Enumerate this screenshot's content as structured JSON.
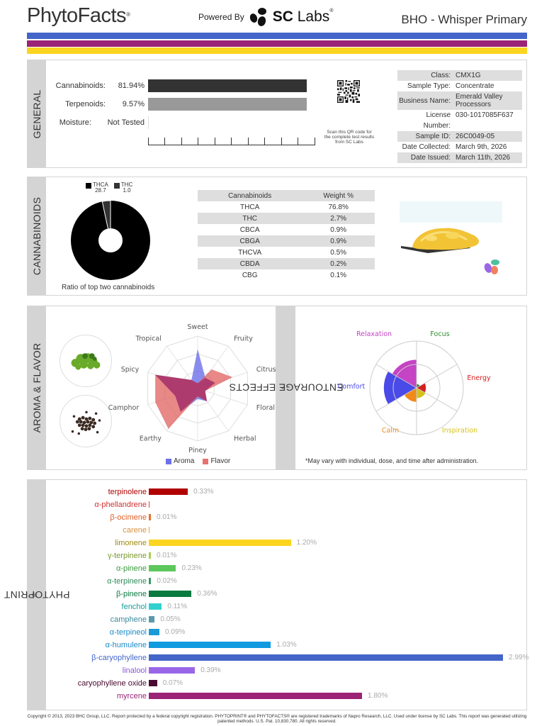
{
  "header": {
    "brand": "PhytoFacts",
    "brand_mark": "®",
    "powered_by": "Powered By",
    "lab_name_bold": "SC",
    "lab_name": "Labs",
    "lab_mark": "®",
    "product_title": "BHO - Whisper Primary"
  },
  "stripes": [
    "#4466c9",
    "#9b2476",
    "#fcd520"
  ],
  "general": {
    "section_label": "GENERAL",
    "rows": [
      {
        "label": "Cannabinoids:",
        "value": "81.94%",
        "bar_color": "#333333"
      },
      {
        "label": "Terpenoids:",
        "value": "9.57%",
        "bar_color": "#999999"
      },
      {
        "label": "Moisture:",
        "value": "Not Tested",
        "bar_color": "#dddddd"
      }
    ],
    "qr_caption": "Scan this QR code for the complete test results from SC Labs",
    "info": [
      {
        "key": "Class:",
        "value": "CMX1G"
      },
      {
        "key": "Sample Type:",
        "value": "Concentrate"
      },
      {
        "key": "Business Name:",
        "value": "Emerald Valley Processors"
      },
      {
        "key": "License Number:",
        "value": "030-1017085F637"
      },
      {
        "key": "Sample ID:",
        "value": "26C0049-05"
      },
      {
        "key": "Date Collected:",
        "value": "March 9th, 2026"
      },
      {
        "key": "Date Issued:",
        "value": "March 11th, 2026"
      }
    ]
  },
  "cannabinoids": {
    "section_label": "CANNABINOIDS",
    "donut_legend": [
      {
        "label": "THCA",
        "value": "28.7",
        "color": "#000000"
      },
      {
        "label": "THC",
        "value": "1.0",
        "color": "#333333"
      }
    ],
    "donut_caption": "Ratio of top two cannabinoids",
    "table": {
      "headers": [
        "Cannabinoids",
        "Weight %"
      ],
      "rows": [
        [
          "THCA",
          "76.8%"
        ],
        [
          "THC",
          "2.7%"
        ],
        [
          "CBCA",
          "0.9%"
        ],
        [
          "CBGA",
          "0.9%"
        ],
        [
          "THCVA",
          "0.5%"
        ],
        [
          "CBDA",
          "0.2%"
        ],
        [
          "CBG",
          "0.1%"
        ]
      ]
    }
  },
  "aroma": {
    "section_label": "AROMA & FLAVOR",
    "axes": [
      "Sweet",
      "Fruity",
      "Citrusy",
      "Floral",
      "Herbal",
      "Piney",
      "Earthy",
      "Camphor",
      "Spicy",
      "Tropical"
    ],
    "legend": [
      {
        "label": "Aroma",
        "color": "#6d6fe8"
      },
      {
        "label": "Flavor",
        "color": "#e8706f"
      }
    ]
  },
  "effects": {
    "section_label": "ENTOURAGE EFFECTS",
    "section_mark": "*",
    "labels": [
      {
        "label": "Relaxation",
        "color": "#c543c5"
      },
      {
        "label": "Focus",
        "color": "#2e8b2e"
      },
      {
        "label": "Energy",
        "color": "#d62020"
      },
      {
        "label": "Inspiration",
        "color": "#d4c21a"
      },
      {
        "label": "Calm",
        "color": "#f08a1a"
      },
      {
        "label": "Comfort",
        "color": "#4a4ae8"
      }
    ],
    "note": "*May vary with individual, dose, and time after administration."
  },
  "phytoprint": {
    "section_label": "PHYTOPRINT",
    "section_mark": "®",
    "terpenes": [
      {
        "name": "terpinolene",
        "value": "0.33%",
        "pct": 0.33,
        "color": "#b00000",
        "text_color": "#b00000"
      },
      {
        "name": "α-phellandrene",
        "value": "",
        "pct": 0.0,
        "color": "#e04040",
        "text_color": "#d03030"
      },
      {
        "name": "β-ocimene",
        "value": "0.01%",
        "pct": 0.01,
        "color": "#e8702a",
        "text_color": "#e0602a"
      },
      {
        "name": "carene",
        "value": "",
        "pct": 0.0,
        "color": "#e8a040",
        "text_color": "#d89040"
      },
      {
        "name": "limonene",
        "value": "1.20%",
        "pct": 1.2,
        "color": "#fcd520",
        "text_color": "#a08a10"
      },
      {
        "name": "γ-terpinene",
        "value": "0.01%",
        "pct": 0.01,
        "color": "#a8d050",
        "text_color": "#7a9a30"
      },
      {
        "name": "α-pinene",
        "value": "0.23%",
        "pct": 0.23,
        "color": "#5cc85c",
        "text_color": "#3a9a3a"
      },
      {
        "name": "α-terpinene",
        "value": "0.02%",
        "pct": 0.02,
        "color": "#3a9a6a",
        "text_color": "#2e8a5a"
      },
      {
        "name": "β-pinene",
        "value": "0.36%",
        "pct": 0.36,
        "color": "#0a7a40",
        "text_color": "#0a7a40"
      },
      {
        "name": "fenchol",
        "value": "0.11%",
        "pct": 0.11,
        "color": "#30d0d0",
        "text_color": "#1a9a9a"
      },
      {
        "name": "camphene",
        "value": "0.05%",
        "pct": 0.05,
        "color": "#5a9aaa",
        "text_color": "#3a8a9a"
      },
      {
        "name": "α-terpineol",
        "value": "0.09%",
        "pct": 0.09,
        "color": "#1a9ad8",
        "text_color": "#1a8ac8"
      },
      {
        "name": "α-humulene",
        "value": "1.03%",
        "pct": 1.03,
        "color": "#109ae0",
        "text_color": "#1a8ac8"
      },
      {
        "name": "β-caryophyllene",
        "value": "2.99%",
        "pct": 2.99,
        "color": "#4466c9",
        "text_color": "#4466c9"
      },
      {
        "name": "linalool",
        "value": "0.39%",
        "pct": 0.39,
        "color": "#9a66e8",
        "text_color": "#8a56d8"
      },
      {
        "name": "caryophyllene oxide",
        "value": "0.07%",
        "pct": 0.07,
        "color": "#4a0a30",
        "text_color": "#4a0a30"
      },
      {
        "name": "myrcene",
        "value": "1.80%",
        "pct": 1.8,
        "color": "#9b2476",
        "text_color": "#9b2476"
      }
    ]
  },
  "footer": {
    "copyright": "Copyright © 2013, 2023 BHC Group, LLC. Report protected by a federal copyright registration. PHYTOPRINT® and PHYTOFACTS® are registered trademarks of Napro Research, LLC. Used under license by SC Labs. This report was generated utilizing patented methods. U.S. Pat. 10,830,780. All rights reserved."
  },
  "chart_data": [
    {
      "type": "bar",
      "title": "General",
      "categories": [
        "Cannabinoids",
        "Terpenoids",
        "Moisture"
      ],
      "values": [
        81.94,
        9.57,
        null
      ],
      "value_labels": [
        "81.94%",
        "9.57%",
        "Not Tested"
      ],
      "orientation": "horizontal",
      "xlim": [
        0,
        100
      ],
      "ticks": 11
    },
    {
      "type": "pie",
      "title": "Ratio of top two cannabinoids",
      "categories": [
        "THCA",
        "THC"
      ],
      "values": [
        28.7,
        1.0
      ],
      "donut": true
    },
    {
      "type": "table",
      "title": "Cannabinoids",
      "categories": [
        "THCA",
        "THC",
        "CBCA",
        "CBGA",
        "THCVA",
        "CBDA",
        "CBG"
      ],
      "values": [
        76.8,
        2.7,
        0.9,
        0.9,
        0.5,
        0.2,
        0.1
      ],
      "ylabel": "Weight %"
    },
    {
      "type": "radar",
      "title": "Aroma & Flavor",
      "categories": [
        "Sweet",
        "Fruity",
        "Citrusy",
        "Floral",
        "Herbal",
        "Piney",
        "Earthy",
        "Camphor",
        "Spicy",
        "Tropical"
      ],
      "series": [
        {
          "name": "Aroma",
          "values": [
            0.75,
            0.25,
            0.35,
            0.15,
            0.3,
            0.2,
            0.55,
            0.45,
            0.85,
            0.2
          ]
        },
        {
          "name": "Flavor",
          "values": [
            0.1,
            0.45,
            0.7,
            0.15,
            0.3,
            0.15,
            0.95,
            0.85,
            0.85,
            0.2
          ]
        }
      ],
      "rlim": [
        0,
        1
      ],
      "legend_position": "bottom"
    },
    {
      "type": "polar-area",
      "title": "Entourage Effects",
      "categories": [
        "Focus",
        "Energy",
        "Inspiration",
        "Calm",
        "Comfort",
        "Relaxation"
      ],
      "values": [
        0.08,
        0.2,
        0.22,
        0.3,
        0.7,
        0.6
      ],
      "rlim": [
        0,
        1
      ]
    },
    {
      "type": "bar",
      "title": "PhytoPrint",
      "orientation": "horizontal",
      "categories": [
        "terpinolene",
        "α-phellandrene",
        "β-ocimene",
        "carene",
        "limonene",
        "γ-terpinene",
        "α-pinene",
        "α-terpinene",
        "β-pinene",
        "fenchol",
        "camphene",
        "α-terpineol",
        "α-humulene",
        "β-caryophyllene",
        "linalool",
        "caryophyllene oxide",
        "myrcene"
      ],
      "values": [
        0.33,
        0.0,
        0.01,
        0.0,
        1.2,
        0.01,
        0.23,
        0.02,
        0.36,
        0.11,
        0.05,
        0.09,
        1.03,
        2.99,
        0.39,
        0.07,
        1.8
      ],
      "xlabel": "%"
    }
  ]
}
